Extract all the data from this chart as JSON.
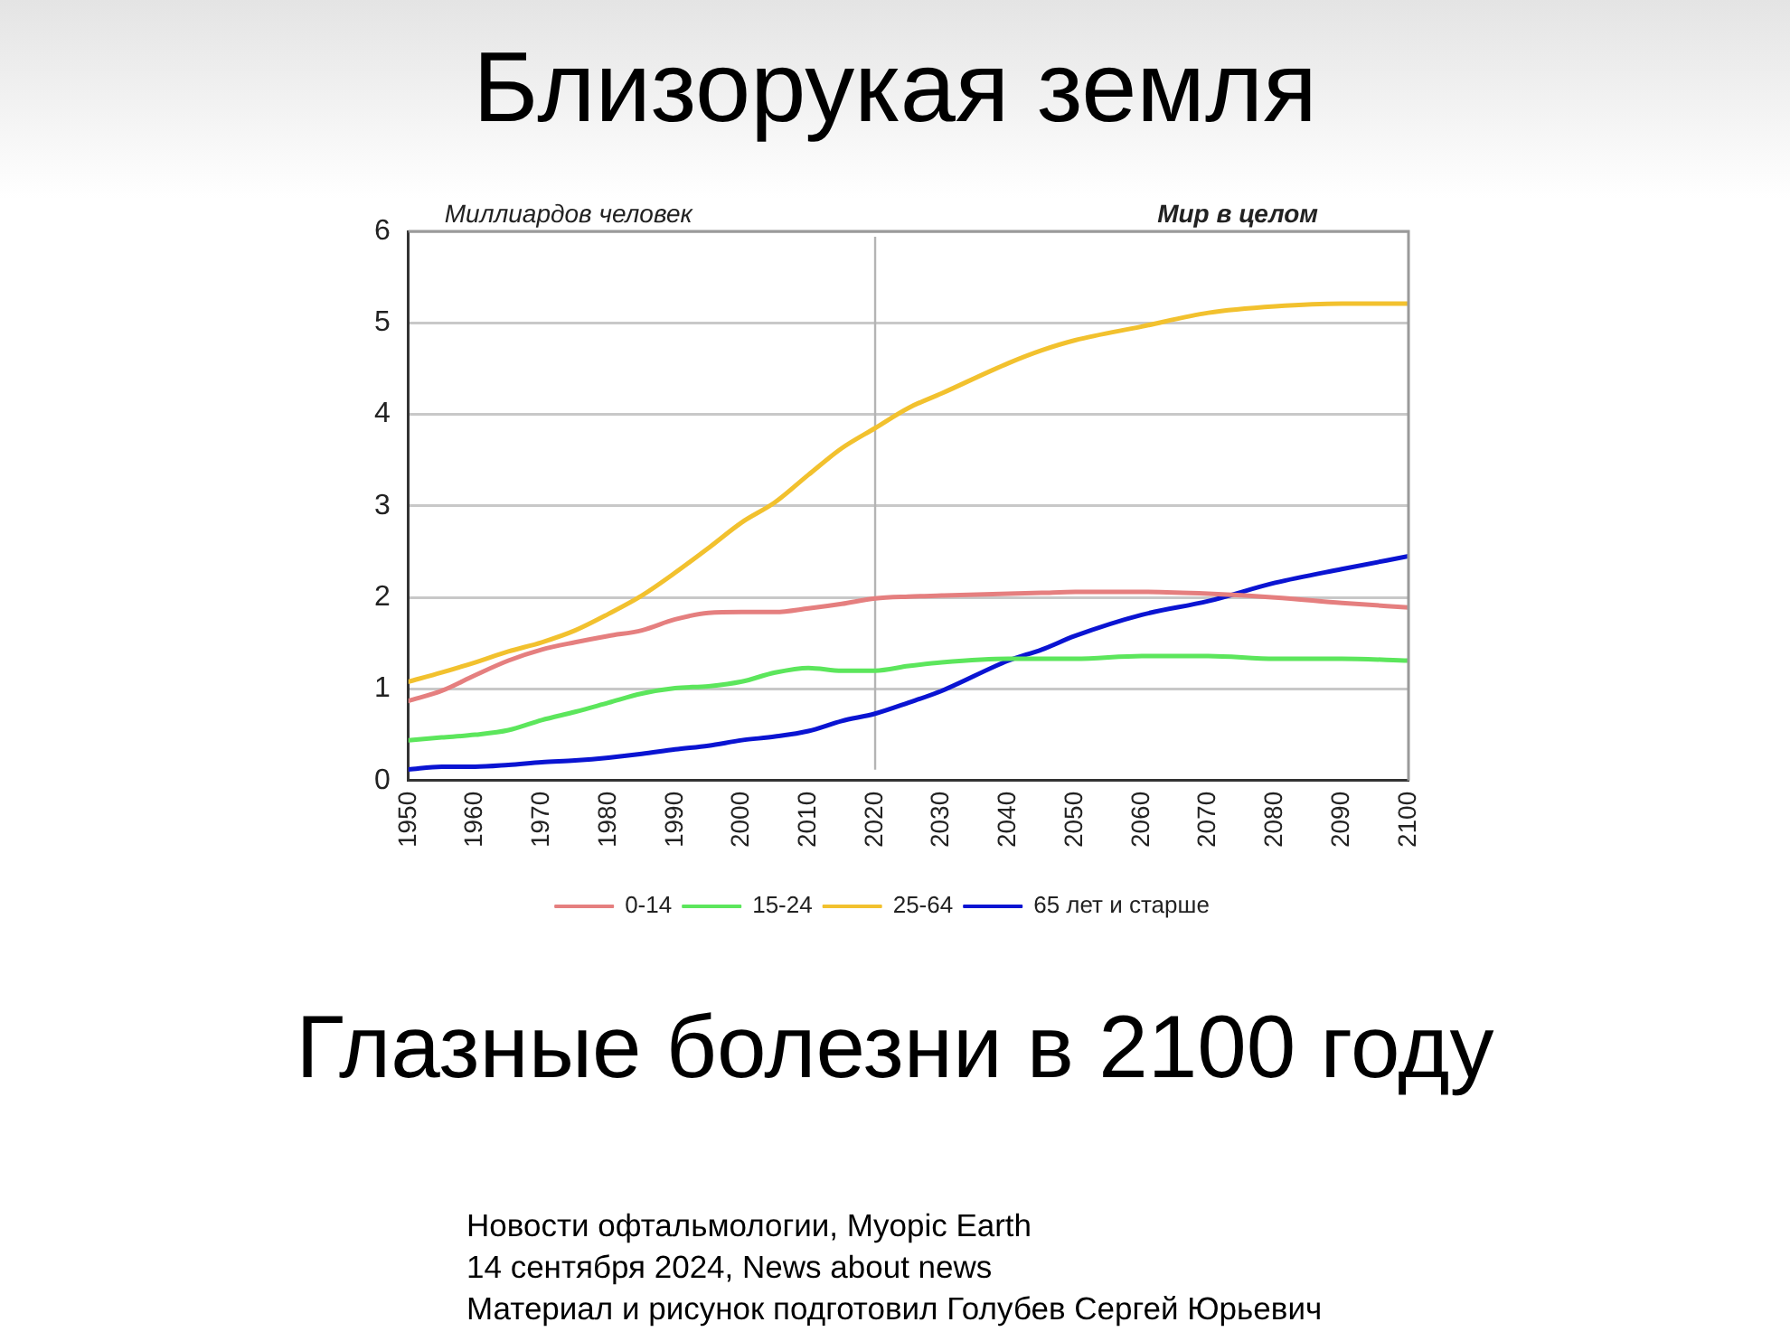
{
  "chart_data": {
    "type": "line",
    "title": "Близорукая земля",
    "subtitle": "Мир в целом",
    "ylabel": "Миллиардов человек",
    "annotations": [
      "Глазные болезни в 2100 году",
      "Новости офтальмологии, Myopic Earth",
      "14 сентября 2024, News about news",
      "Материал и рисунок подготовил Голубев Сергей Юрьевич"
    ],
    "x": [
      1950,
      1955,
      1960,
      1965,
      1970,
      1975,
      1980,
      1985,
      1990,
      1995,
      2000,
      2005,
      2010,
      2015,
      2020,
      2025,
      2030,
      2040,
      2045,
      2050,
      2060,
      2070,
      2080,
      2090,
      2100
    ],
    "series": [
      {
        "name": "0-14",
        "color": "#e57f7f",
        "values": [
          0.87,
          0.98,
          1.15,
          1.31,
          1.43,
          1.51,
          1.58,
          1.64,
          1.76,
          1.83,
          1.84,
          1.84,
          1.88,
          1.93,
          1.99,
          2.01,
          2.02,
          2.04,
          2.05,
          2.06,
          2.06,
          2.04,
          2.0,
          1.94,
          1.89
        ]
      },
      {
        "name": "15-24",
        "color": "#5ce65c",
        "values": [
          0.44,
          0.47,
          0.5,
          0.55,
          0.66,
          0.75,
          0.85,
          0.95,
          1.01,
          1.03,
          1.08,
          1.18,
          1.23,
          1.2,
          1.2,
          1.25,
          1.29,
          1.33,
          1.33,
          1.33,
          1.36,
          1.36,
          1.33,
          1.33,
          1.31
        ]
      },
      {
        "name": "25-64",
        "color": "#f2c12e",
        "values": [
          1.08,
          1.18,
          1.29,
          1.41,
          1.51,
          1.64,
          1.82,
          2.02,
          2.27,
          2.54,
          2.82,
          3.04,
          3.34,
          3.63,
          3.85,
          4.07,
          4.23,
          4.56,
          4.7,
          4.81,
          4.96,
          5.11,
          5.18,
          5.21,
          5.21
        ]
      },
      {
        "name": "65 лет и старше",
        "color": "#0a14d2",
        "values": [
          0.12,
          0.15,
          0.15,
          0.17,
          0.2,
          0.22,
          0.25,
          0.29,
          0.34,
          0.38,
          0.44,
          0.48,
          0.54,
          0.65,
          0.73,
          0.85,
          0.98,
          1.31,
          1.43,
          1.58,
          1.81,
          1.96,
          2.16,
          2.31,
          2.45
        ]
      }
    ],
    "xlim": [
      1950,
      2100
    ],
    "xticks": [
      1950,
      1960,
      1970,
      1980,
      1990,
      2000,
      2010,
      2020,
      2030,
      2040,
      2050,
      2060,
      2070,
      2080,
      2090,
      2100
    ],
    "ylim": [
      0,
      6
    ],
    "yticks": [
      0,
      1,
      2,
      3,
      4,
      5,
      6
    ],
    "grid": "y",
    "legend": "bottom",
    "marker": "none",
    "line_style": "solid",
    "ref_lines": [
      {
        "axis": "x",
        "value": 2020,
        "color": "#b4b4b4"
      }
    ]
  }
}
